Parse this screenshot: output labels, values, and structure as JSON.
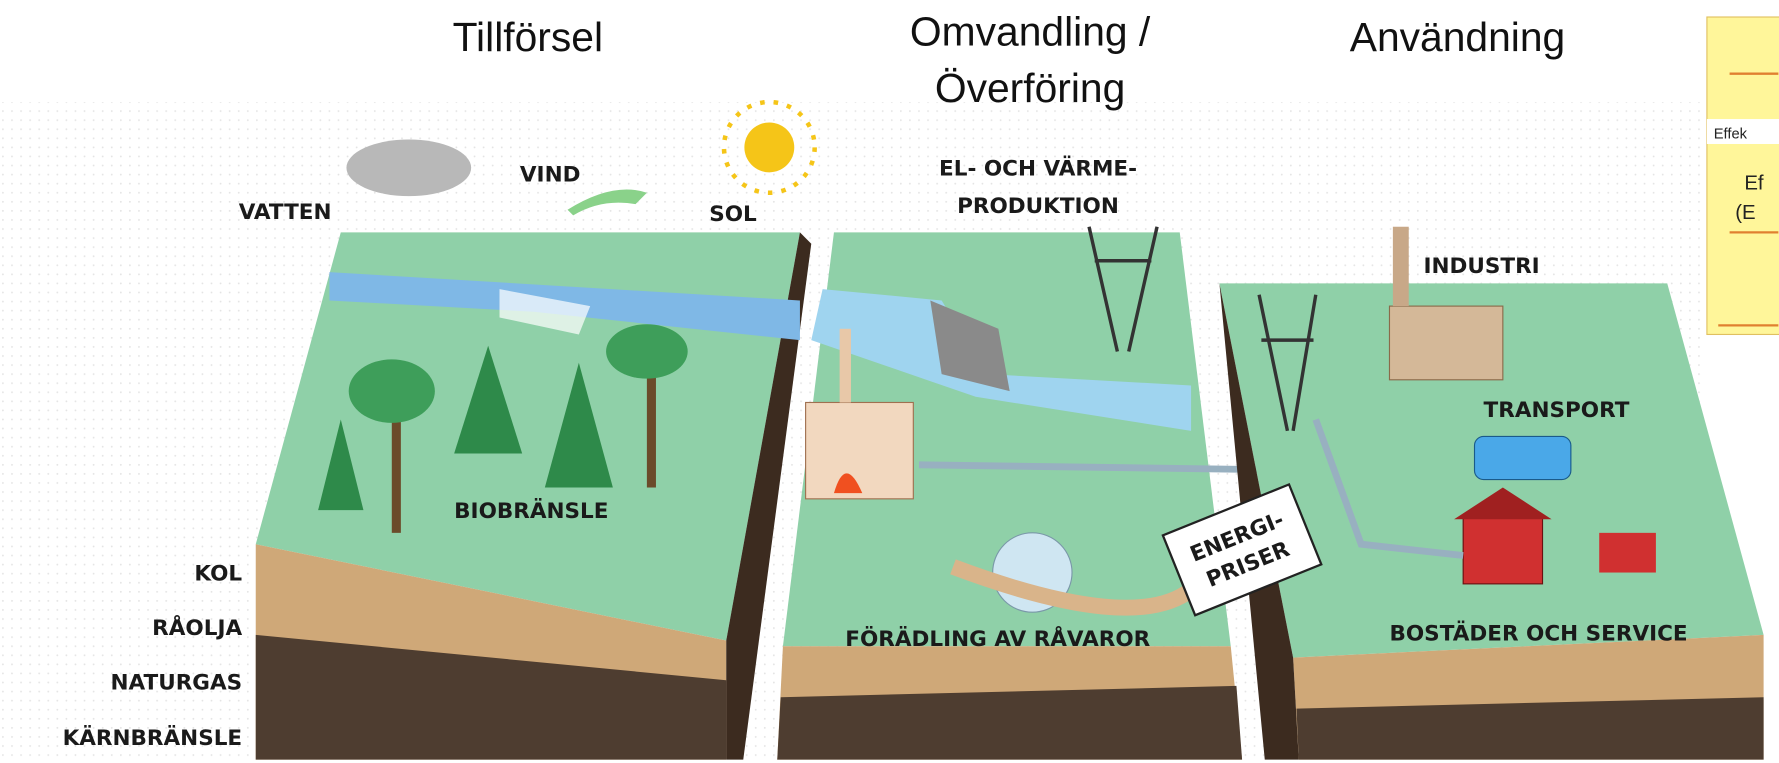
{
  "headings": {
    "supply": "Tillförsel",
    "conversion": [
      "Omvandling /",
      "Överföring"
    ],
    "use": "Användning"
  },
  "labels": {
    "water": "VATTEN",
    "wind": "VIND",
    "sun": "SOL",
    "power_heat": [
      "EL- OCH VÄRME-",
      "PRODUKTION"
    ],
    "industry": "INDUSTRI",
    "transport": "TRANSPORT",
    "biofuel": "BIOBRÄNSLE",
    "coal": "KOL",
    "crude_oil": "RÅOLJA",
    "natural_gas": "NATURGAS",
    "nuclear_fuel": "KÄRNBRÄNSLE",
    "refining": "FÖRÄDLING AV RÅVAROR",
    "housing_service": "BOSTÄDER OCH SERVICE",
    "energy_prices": [
      "ENERGI-",
      "PRISER"
    ]
  },
  "side_panel": {
    "header": "Effek",
    "lines": [
      "Ef",
      "(E"
    ]
  }
}
